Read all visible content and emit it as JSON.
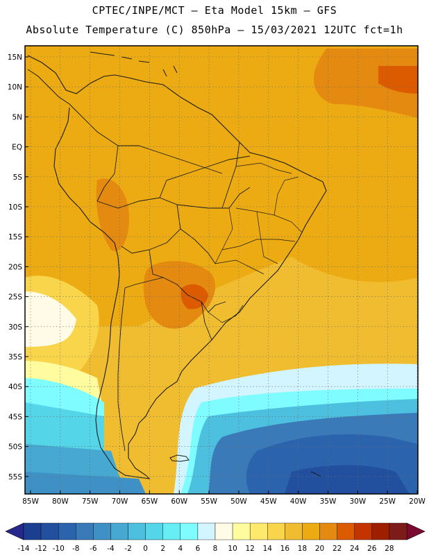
{
  "header": {
    "line1": "CPTEC/INPE/MCT —  Eta Model 15km — GFS",
    "line2": "Absolute Temperature (C) 850hPa — 15/03/2021 12UTC fct=1h"
  },
  "axes": {
    "lat_labels": [
      "15N",
      "10N",
      "5N",
      "EQ",
      "5S",
      "10S",
      "15S",
      "20S",
      "25S",
      "30S",
      "35S",
      "40S",
      "45S",
      "50S",
      "55S"
    ],
    "lon_labels": [
      "85W",
      "80W",
      "75W",
      "70W",
      "65W",
      "60W",
      "55W",
      "50W",
      "45W",
      "40W",
      "35W",
      "30W",
      "25W",
      "20W"
    ]
  },
  "colorbar": {
    "labels": [
      "-14",
      "-12",
      "-10",
      "-8",
      "-6",
      "-4",
      "-2",
      "0",
      "2",
      "4",
      "6",
      "8",
      "10",
      "12",
      "14",
      "16",
      "18",
      "20",
      "22",
      "24",
      "26",
      "28"
    ],
    "colors": [
      "#1b3f8f",
      "#22509e",
      "#2c63ad",
      "#3a7ab9",
      "#3f90c4",
      "#47a8d2",
      "#4cc0de",
      "#55d6e8",
      "#66eef4",
      "#7ffcff",
      "#d2f5ff",
      "#fffbe6",
      "#fffca0",
      "#fde96c",
      "#f8d54a",
      "#f0bd30",
      "#ecab13",
      "#e58a10",
      "#dc5a00",
      "#c43400",
      "#9e1e00",
      "#7d1b1b"
    ],
    "under_color": "#27278d",
    "over_color": "#7a0a2e"
  },
  "colors": {
    "ocean_warm": "#ecab13",
    "land": "#e58a10",
    "border": "#1a1a1a"
  }
}
